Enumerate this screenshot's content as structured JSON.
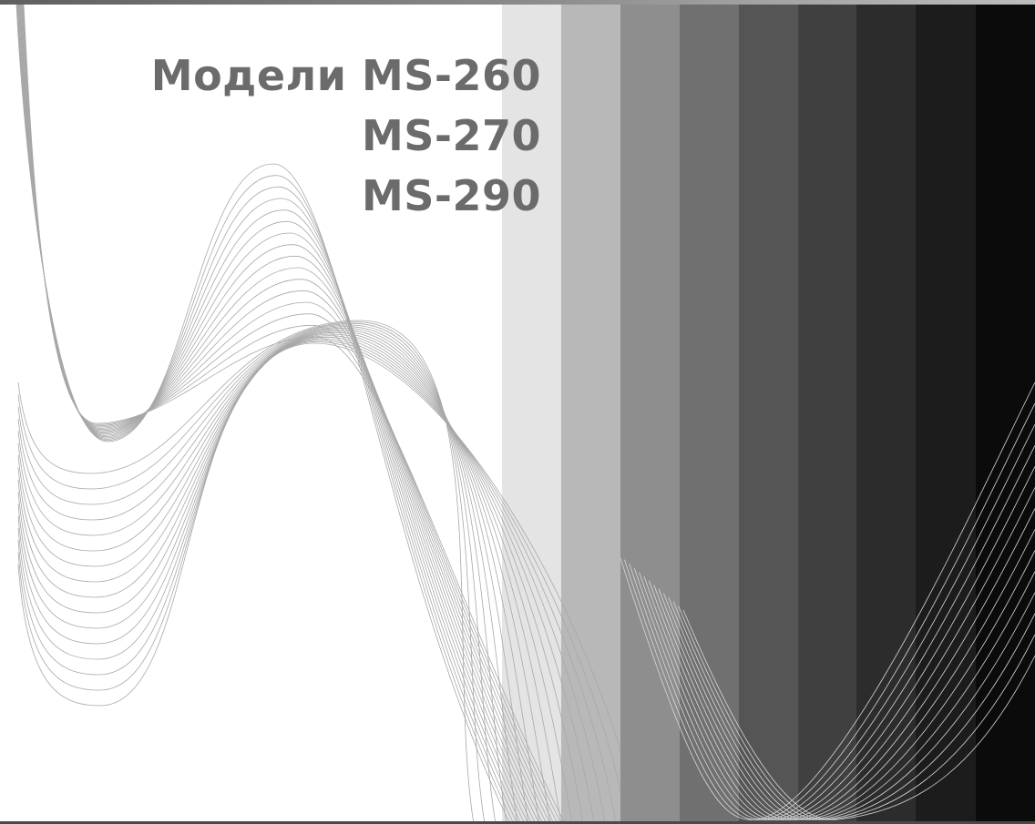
{
  "title": {
    "prefix": "Модели",
    "models": [
      "MS-260",
      "MS-270",
      "MS-290"
    ]
  },
  "colors": {
    "title": "#6b6b6b",
    "stripes": [
      "#e4e4e4",
      "#b8b8b8",
      "#8e8e8e",
      "#707070",
      "#555555",
      "#404040",
      "#2c2c2c",
      "#1c1c1c",
      "#0b0b0b"
    ],
    "wave_light": "#a8a8a8",
    "wave_dark": "#d8d8d8"
  }
}
